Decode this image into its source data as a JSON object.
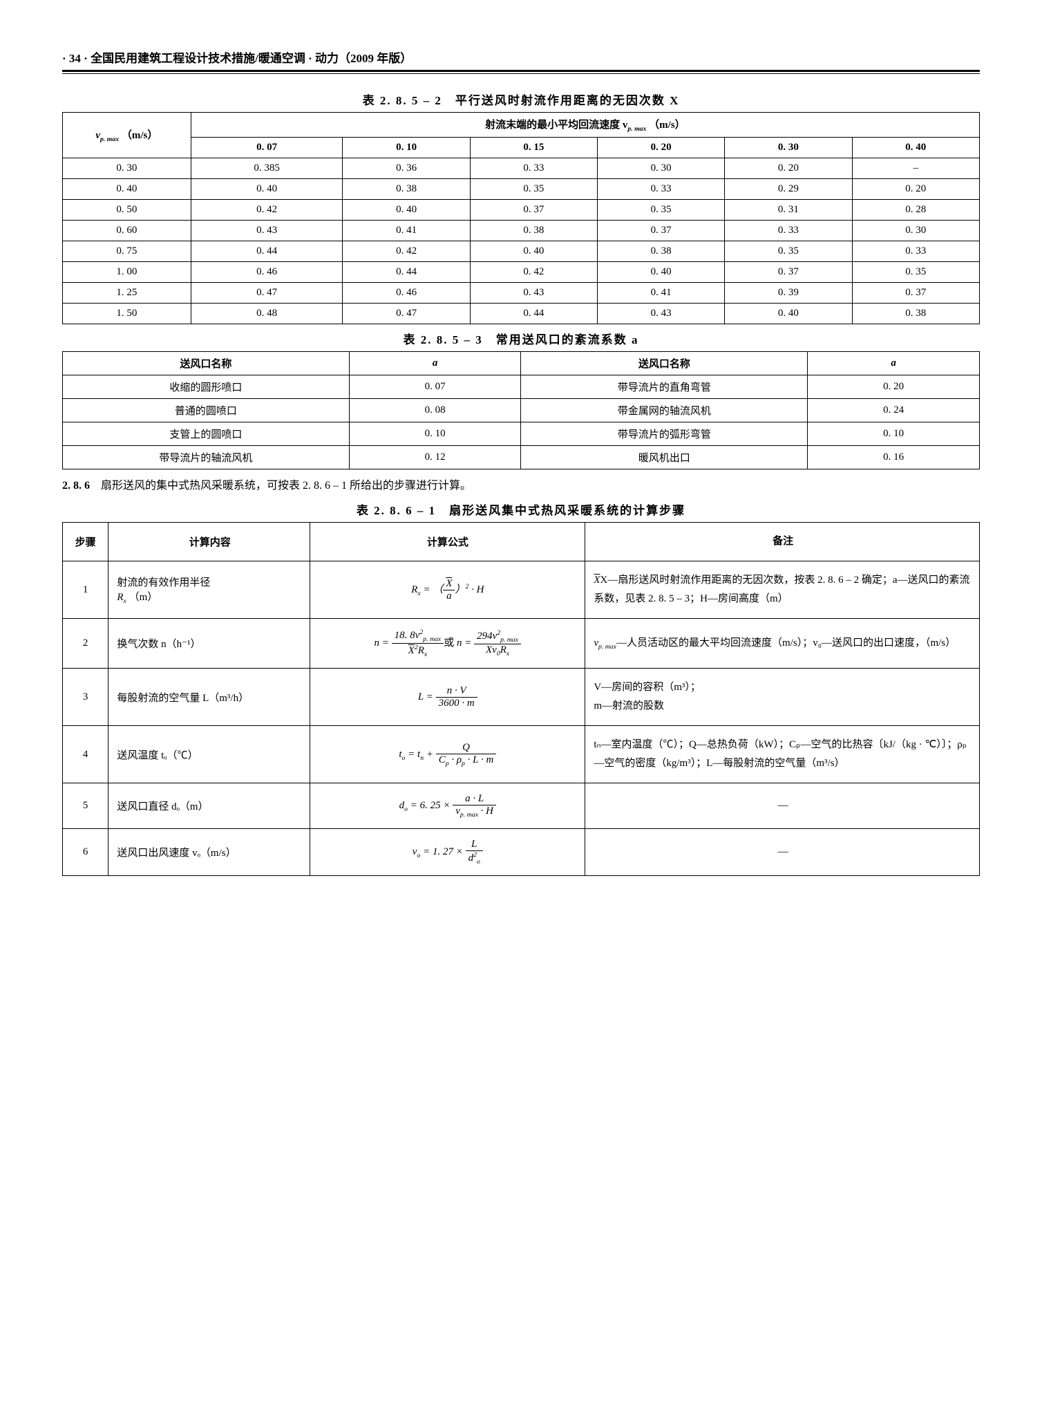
{
  "page": {
    "number": "· 34 ·",
    "header": "全国民用建筑工程设计技术措施/暖通空调 · 动力（2009 年版）"
  },
  "table1": {
    "title": "表 2. 8. 5 – 2　平行送风时射流作用距离的无因次数 X",
    "row_header": "v",
    "row_header_sub": "p. max",
    "row_header_unit": "（m/s）",
    "col_group_label": "射流末端的最小平均回流速度 v",
    "col_group_sub": "p. max",
    "col_group_unit": "（m/s）",
    "cols": [
      "0. 07",
      "0. 10",
      "0. 15",
      "0. 20",
      "0. 30",
      "0. 40"
    ],
    "row_labels": [
      "0. 30",
      "0. 40",
      "0. 50",
      "0. 60",
      "0. 75",
      "1. 00",
      "1. 25",
      "1. 50"
    ],
    "rows": [
      [
        "0. 385",
        "0. 36",
        "0. 33",
        "0. 30",
        "0. 20",
        "–"
      ],
      [
        "0. 40",
        "0. 38",
        "0. 35",
        "0. 33",
        "0. 29",
        "0. 20"
      ],
      [
        "0. 42",
        "0. 40",
        "0. 37",
        "0. 35",
        "0. 31",
        "0. 28"
      ],
      [
        "0. 43",
        "0. 41",
        "0. 38",
        "0. 37",
        "0. 33",
        "0. 30"
      ],
      [
        "0. 44",
        "0. 42",
        "0. 40",
        "0. 38",
        "0. 35",
        "0. 33"
      ],
      [
        "0. 46",
        "0. 44",
        "0. 42",
        "0. 40",
        "0. 37",
        "0. 35"
      ],
      [
        "0. 47",
        "0. 46",
        "0. 43",
        "0. 41",
        "0. 39",
        "0. 37"
      ],
      [
        "0. 48",
        "0. 47",
        "0. 44",
        "0. 43",
        "0. 40",
        "0. 38"
      ]
    ]
  },
  "table2": {
    "title": "表 2. 8. 5 – 3　常用送风口的紊流系数 a",
    "h1": "送风口名称",
    "h2": "a",
    "h3": "送风口名称",
    "h4": "a",
    "left_names": [
      "收缩的圆形喷口",
      "普通的圆喷口",
      "支管上的圆喷口",
      "带导流片的轴流风机"
    ],
    "left_vals": [
      "0. 07",
      "0. 08",
      "0. 10",
      "0. 12"
    ],
    "right_names": [
      "带导流片的直角弯管",
      "带金属网的轴流风机",
      "带导流片的弧形弯管",
      "暖风机出口"
    ],
    "right_vals": [
      "0. 20",
      "0. 24",
      "0. 10",
      "0. 16"
    ]
  },
  "section286": {
    "label": "2. 8. 6",
    "text": "扇形送风的集中式热风采暖系统，可按表 2. 8. 6 – 1 所给出的步骤进行计算。"
  },
  "table3": {
    "title": "表 2. 8. 6 – 1　扇形送风集中式热风采暖系统的计算步骤",
    "h_step": "步骤",
    "h_content": "计算内容",
    "h_formula": "计算公式",
    "h_note": "备注",
    "rows": {
      "r1": {
        "step": "1",
        "content_a": "射流的有效作用半径",
        "content_b": "R",
        "content_sub": "x",
        "content_unit": "（m）",
        "note": "X—扇形送风时射流作用距离的无因次数，按表 2. 8. 6 – 2 确定；a—送风口的紊流系数，见表 2. 8. 5 – 3；H—房间高度（m）"
      },
      "r2": {
        "step": "2",
        "content": "换气次数 n（h⁻¹）",
        "note_a": "v",
        "note_sub": "p. max",
        "note_b": "—人员活动区的最大平均回流速度（m/s）；v₀—送风口的出口速度，（m/s）"
      },
      "r3": {
        "step": "3",
        "content": "每股射流的空气量 L（m³/h）",
        "note": "V—房间的容积（m³）；\nm—射流的股数"
      },
      "r4": {
        "step": "4",
        "content": "送风温度 tₒ（℃）",
        "note": "tₙ—室内温度（℃）；Q—总热负荷（kW）；Cₚ—空气的比热容〔kJ/（kg · ℃）〕；ρₚ—空气的密度（kg/m³）；L—每股射流的空气量（m³/s）"
      },
      "r5": {
        "step": "5",
        "content": "送风口直径 dₒ（m）",
        "note": "—"
      },
      "r6": {
        "step": "6",
        "content": "送风口出风速度 vₒ（m/s）",
        "note": "—"
      }
    }
  }
}
